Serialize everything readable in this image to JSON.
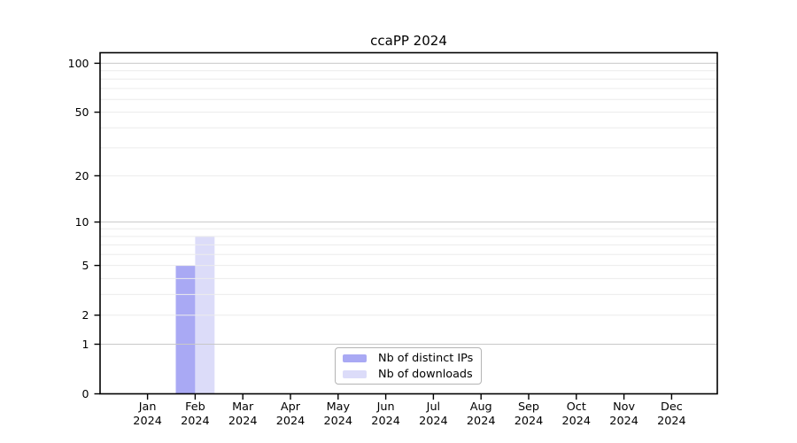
{
  "chart_data": {
    "type": "bar",
    "title": "ccaPP 2024",
    "yscale": "log1p",
    "ylim": [
      0,
      116
    ],
    "categories": [
      "Jan 2024",
      "Feb 2024",
      "Mar 2024",
      "Apr 2024",
      "May 2024",
      "Jun 2024",
      "Jul 2024",
      "Aug 2024",
      "Sep 2024",
      "Oct 2024",
      "Nov 2024",
      "Dec 2024"
    ],
    "series": [
      {
        "name": "Nb of distinct IPs",
        "color": "#a9a9f4",
        "values": [
          0,
          5,
          0,
          0,
          0,
          0,
          0,
          0,
          0,
          0,
          0,
          0
        ]
      },
      {
        "name": "Nb of downloads",
        "color": "#dcdcf9",
        "values": [
          0,
          8,
          0,
          0,
          0,
          0,
          0,
          0,
          0,
          0,
          0,
          0
        ]
      }
    ],
    "yticks": [
      0,
      1,
      2,
      5,
      10,
      20,
      50,
      100
    ],
    "grid": {
      "major_values": [
        1,
        10,
        100
      ],
      "minor_values": [
        2,
        3,
        4,
        5,
        6,
        7,
        8,
        9,
        20,
        30,
        40,
        50,
        60,
        70,
        80,
        90
      ],
      "major_color": "#c8c8c8",
      "minor_color": "#ececec"
    },
    "axis_color": "#000000",
    "legend_position": "lower center",
    "xlabel": "",
    "ylabel": ""
  }
}
